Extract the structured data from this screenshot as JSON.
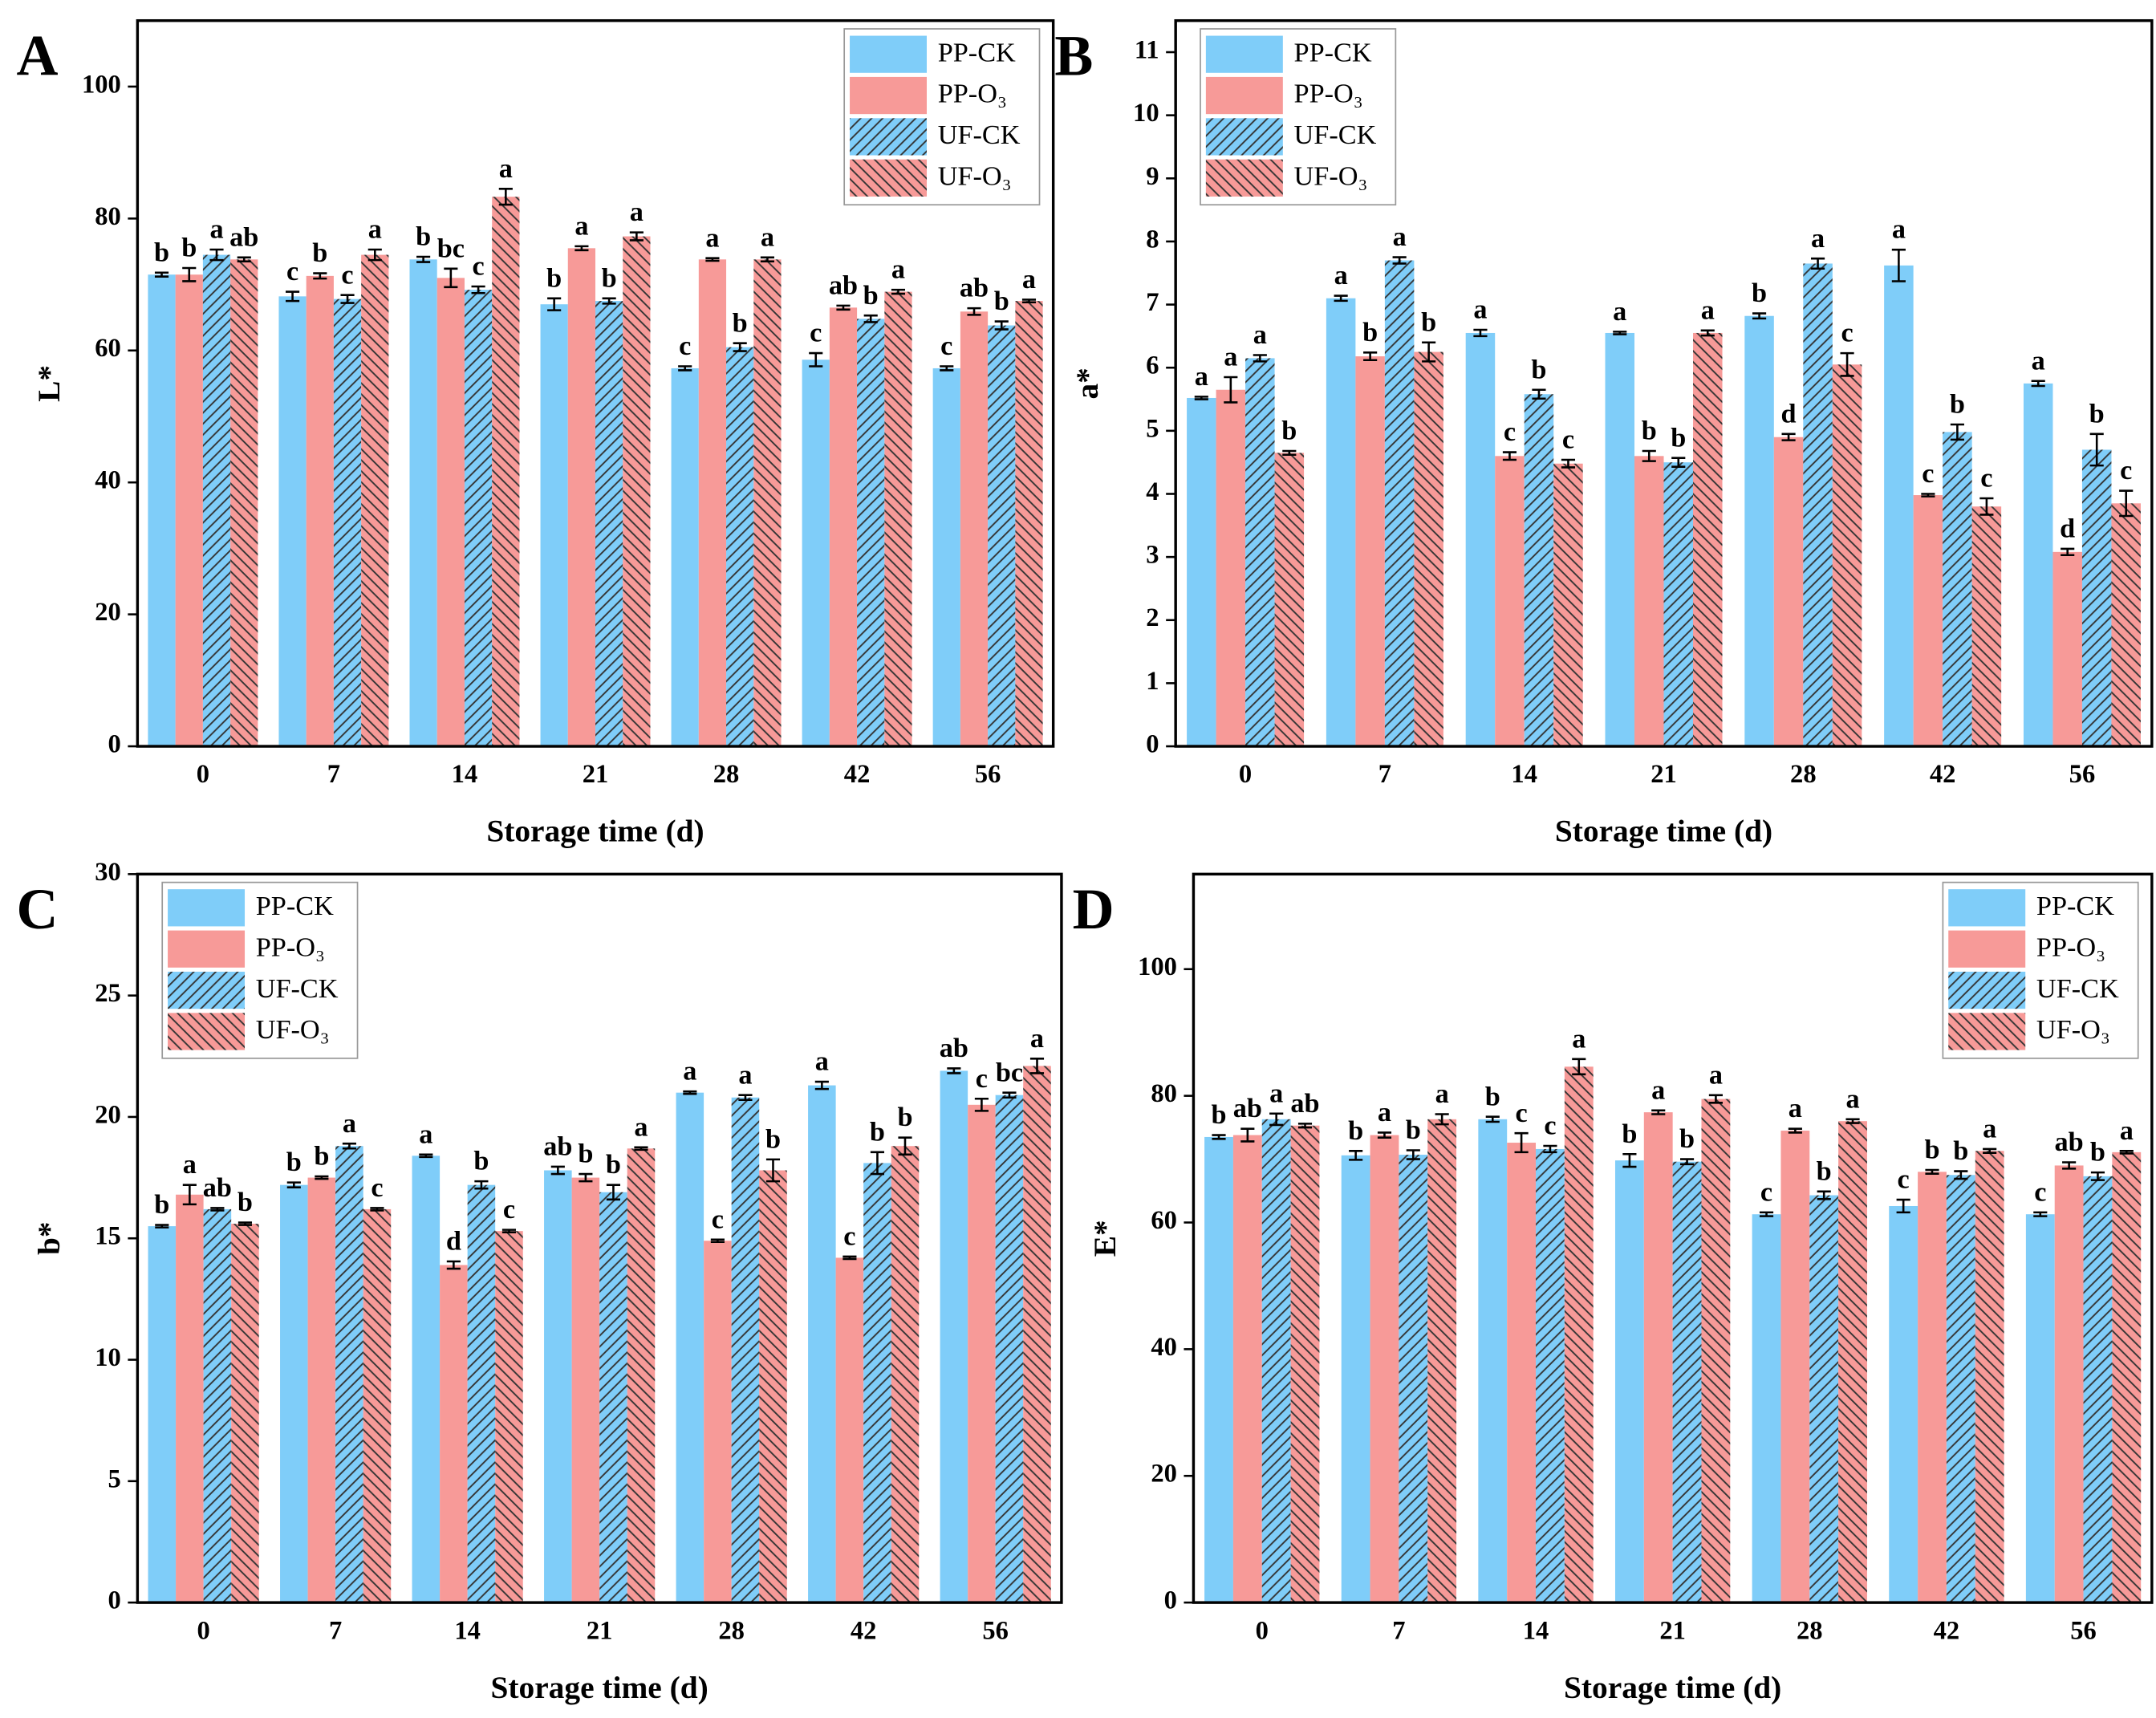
{
  "chart_data": [
    {
      "type": "bar",
      "panel_label": "A",
      "y_label": "L*",
      "x_label": "Storage time (d)",
      "categories": [
        "0",
        "7",
        "14",
        "21",
        "28",
        "42",
        "56"
      ],
      "ylim": [
        0,
        110
      ],
      "yticks": [
        0,
        20,
        40,
        60,
        80,
        100
      ],
      "legend": "upper right",
      "series": [
        {
          "name": "PP-CK",
          "color": "#7fcdf9",
          "values": [
            71.5,
            68.2,
            73.8,
            67.0,
            57.3,
            58.6,
            57.3
          ],
          "errors": [
            0.3,
            0.7,
            0.4,
            0.9,
            0.3,
            1.0,
            0.3
          ],
          "labels": [
            "b",
            "c",
            "b",
            "b",
            "c",
            "c",
            "c"
          ]
        },
        {
          "name": "PP-O₃",
          "color": "#f79a98",
          "values": [
            71.5,
            71.3,
            71.0,
            75.5,
            73.8,
            66.5,
            65.9
          ],
          "errors": [
            1.0,
            0.4,
            1.4,
            0.3,
            0.2,
            0.3,
            0.5
          ],
          "labels": [
            "b",
            "b",
            "bc",
            "a",
            "a",
            "ab",
            "ab"
          ]
        },
        {
          "name": "UF-CK",
          "color": "#7fcdf9",
          "hatch": "/",
          "values": [
            74.5,
            67.8,
            69.2,
            67.5,
            60.5,
            64.8,
            63.8
          ],
          "errors": [
            0.8,
            0.6,
            0.5,
            0.4,
            0.6,
            0.5,
            0.6
          ],
          "labels": [
            "a",
            "c",
            "c",
            "b",
            "b",
            "b",
            "b"
          ]
        },
        {
          "name": "UF-O₃",
          "color": "#f79a98",
          "hatch": "\\",
          "values": [
            73.8,
            74.5,
            83.3,
            77.3,
            73.8,
            68.9,
            67.5
          ],
          "errors": [
            0.3,
            0.8,
            1.2,
            0.6,
            0.3,
            0.3,
            0.2
          ],
          "labels": [
            "ab",
            "a",
            "a",
            "a",
            "a",
            "a",
            "a"
          ]
        }
      ]
    },
    {
      "type": "bar",
      "panel_label": "B",
      "y_label": "a*",
      "x_label": "Storage time (d)",
      "categories": [
        "0",
        "7",
        "14",
        "21",
        "28",
        "42",
        "56"
      ],
      "ylim": [
        0,
        11.5
      ],
      "yticks": [
        0,
        1,
        2,
        3,
        4,
        5,
        6,
        7,
        8,
        9,
        10,
        11
      ],
      "legend": "upper left",
      "series": [
        {
          "name": "PP-CK",
          "color": "#7fcdf9",
          "values": [
            5.52,
            7.1,
            6.55,
            6.55,
            6.82,
            7.62,
            5.75
          ],
          "errors": [
            0.02,
            0.04,
            0.05,
            0.02,
            0.04,
            0.25,
            0.04
          ],
          "labels": [
            "a",
            "a",
            "a",
            "a",
            "b",
            "a",
            "a"
          ]
        },
        {
          "name": "PP-O₃",
          "color": "#f79a98",
          "values": [
            5.65,
            6.18,
            4.6,
            4.6,
            4.9,
            3.98,
            3.08
          ],
          "errors": [
            0.2,
            0.06,
            0.06,
            0.08,
            0.05,
            0.02,
            0.05
          ],
          "labels": [
            "a",
            "b",
            "c",
            "b",
            "d",
            "c",
            "d"
          ]
        },
        {
          "name": "UF-CK",
          "color": "#7fcdf9",
          "hatch": "/",
          "values": [
            6.15,
            7.7,
            5.58,
            4.5,
            7.65,
            4.98,
            4.7
          ],
          "errors": [
            0.05,
            0.05,
            0.07,
            0.07,
            0.08,
            0.12,
            0.25
          ],
          "labels": [
            "a",
            "a",
            "b",
            "b",
            "a",
            "b",
            "b"
          ]
        },
        {
          "name": "UF-O₃",
          "color": "#f79a98",
          "hatch": "\\",
          "values": [
            4.65,
            6.25,
            4.48,
            6.55,
            6.05,
            3.8,
            3.85
          ],
          "errors": [
            0.03,
            0.15,
            0.06,
            0.04,
            0.18,
            0.13,
            0.2
          ],
          "labels": [
            "b",
            "b",
            "c",
            "a",
            "c",
            "c",
            "c"
          ]
        }
      ]
    },
    {
      "type": "bar",
      "panel_label": "C",
      "y_label": "b*",
      "x_label": "Storage time (d)",
      "categories": [
        "0",
        "7",
        "14",
        "21",
        "28",
        "42",
        "56"
      ],
      "ylim": [
        0,
        30
      ],
      "yticks": [
        0,
        5,
        10,
        15,
        20,
        25,
        30
      ],
      "legend": "upper left",
      "series": [
        {
          "name": "PP-CK",
          "color": "#7fcdf9",
          "values": [
            15.5,
            17.2,
            18.4,
            17.8,
            21.0,
            21.3,
            21.9
          ],
          "errors": [
            0.05,
            0.1,
            0.05,
            0.15,
            0.05,
            0.15,
            0.1
          ],
          "labels": [
            "b",
            "b",
            "a",
            "ab",
            "a",
            "a",
            "ab"
          ]
        },
        {
          "name": "PP-O₃",
          "color": "#f79a98",
          "values": [
            16.8,
            17.5,
            13.9,
            17.5,
            14.9,
            14.2,
            20.5
          ],
          "errors": [
            0.4,
            0.05,
            0.15,
            0.15,
            0.05,
            0.05,
            0.25
          ],
          "labels": [
            "a",
            "b",
            "d",
            "b",
            "c",
            "c",
            "c"
          ]
        },
        {
          "name": "UF-CK",
          "color": "#7fcdf9",
          "hatch": "/",
          "values": [
            16.2,
            18.8,
            17.2,
            16.9,
            20.8,
            18.1,
            20.9
          ],
          "errors": [
            0.05,
            0.1,
            0.15,
            0.3,
            0.1,
            0.45,
            0.1
          ],
          "labels": [
            "ab",
            "a",
            "b",
            "b",
            "a",
            "b",
            "bc"
          ]
        },
        {
          "name": "UF-O₃",
          "color": "#f79a98",
          "hatch": "\\",
          "values": [
            15.6,
            16.2,
            15.3,
            18.7,
            17.8,
            18.8,
            22.1
          ],
          "errors": [
            0.05,
            0.05,
            0.05,
            0.05,
            0.45,
            0.35,
            0.3
          ],
          "labels": [
            "b",
            "c",
            "c",
            "a",
            "b",
            "b",
            "a"
          ]
        }
      ]
    },
    {
      "type": "bar",
      "panel_label": "D",
      "y_label": "E*",
      "x_label": "Storage time (d)",
      "categories": [
        "0",
        "7",
        "14",
        "21",
        "28",
        "42",
        "56"
      ],
      "ylim": [
        0,
        115
      ],
      "yticks": [
        0,
        20,
        40,
        60,
        80,
        100
      ],
      "legend": "upper right",
      "series": [
        {
          "name": "PP-CK",
          "color": "#7fcdf9",
          "values": [
            73.5,
            70.6,
            76.3,
            69.8,
            61.3,
            62.6,
            61.3
          ],
          "errors": [
            0.3,
            0.7,
            0.4,
            1.0,
            0.3,
            1.0,
            0.3
          ],
          "labels": [
            "b",
            "b",
            "b",
            "b",
            "c",
            "c",
            "c"
          ]
        },
        {
          "name": "PP-O₃",
          "color": "#f79a98",
          "values": [
            73.8,
            73.8,
            72.6,
            77.4,
            74.5,
            68.0,
            69.0
          ],
          "errors": [
            1.0,
            0.4,
            1.5,
            0.3,
            0.3,
            0.3,
            0.5
          ],
          "labels": [
            "ab",
            "a",
            "c",
            "a",
            "a",
            "b",
            "ab"
          ]
        },
        {
          "name": "UF-CK",
          "color": "#7fcdf9",
          "hatch": "/",
          "values": [
            76.3,
            70.7,
            71.6,
            69.6,
            64.3,
            67.5,
            67.3
          ],
          "errors": [
            0.9,
            0.7,
            0.5,
            0.4,
            0.6,
            0.6,
            0.6
          ],
          "labels": [
            "a",
            "b",
            "c",
            "b",
            "b",
            "b",
            "b"
          ]
        },
        {
          "name": "UF-O₃",
          "color": "#f79a98",
          "hatch": "\\",
          "values": [
            75.3,
            76.3,
            84.6,
            79.5,
            76.0,
            71.3,
            71.1
          ],
          "errors": [
            0.3,
            0.8,
            1.2,
            0.6,
            0.3,
            0.3,
            0.2
          ],
          "labels": [
            "ab",
            "a",
            "a",
            "a",
            "a",
            "a",
            "a"
          ]
        }
      ]
    }
  ]
}
